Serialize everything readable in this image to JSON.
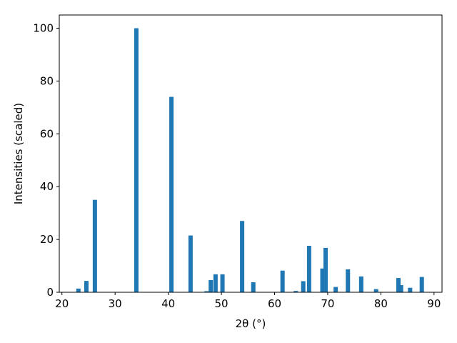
{
  "chart_data": {
    "type": "bar",
    "xlabel": "2θ (°)",
    "ylabel": "Intensities (scaled)",
    "color": "#1f77b4",
    "x": [
      23.1,
      24.6,
      26.2,
      34.0,
      40.6,
      44.2,
      47.2,
      48.0,
      48.9,
      50.2,
      53.9,
      56.0,
      61.5,
      64.0,
      65.4,
      66.5,
      69.0,
      69.6,
      71.5,
      73.8,
      76.3,
      79.1,
      83.3,
      83.8,
      85.5,
      87.7
    ],
    "values": [
      1.4,
      4.3,
      35,
      100,
      74,
      21.5,
      0.4,
      4.6,
      6.8,
      6.8,
      27,
      3.8,
      8.2,
      0.5,
      4.2,
      17.6,
      9,
      16.8,
      2,
      8.7,
      6,
      1.2,
      5.4,
      2.7,
      1.7,
      5.8
    ],
    "xlim": [
      19.5,
      91.5
    ],
    "xticks": [
      20,
      30,
      40,
      50,
      60,
      70,
      80,
      90
    ],
    "ylim": [
      0,
      105
    ],
    "yticks": [
      0,
      20,
      40,
      60,
      80,
      100
    ],
    "grid": false
  }
}
